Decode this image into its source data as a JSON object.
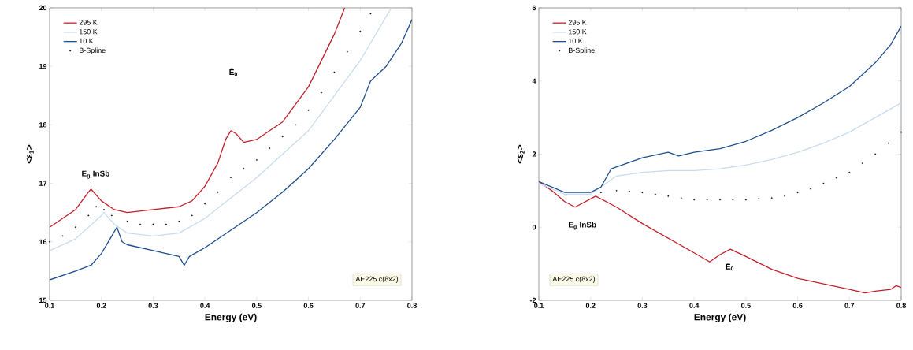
{
  "chart_data": [
    {
      "type": "line",
      "xlabel": "Energy (eV)",
      "ylabel": "<ε$_{1}$>",
      "xlim": [
        0.1,
        0.8
      ],
      "ylim": [
        15,
        20
      ],
      "xticks": [
        0.1,
        0.2,
        0.3,
        0.4,
        0.5,
        0.6,
        0.7,
        0.8
      ],
      "yticks": [
        15,
        16,
        17,
        18,
        19,
        20
      ],
      "legend": "top left",
      "series": [
        {
          "name": "295 K",
          "color": "#c0202a",
          "x": [
            0.1,
            0.125,
            0.15,
            0.175,
            0.18,
            0.2,
            0.225,
            0.25,
            0.3,
            0.35,
            0.375,
            0.4,
            0.425,
            0.44,
            0.45,
            0.46,
            0.475,
            0.5,
            0.525,
            0.55,
            0.575,
            0.6,
            0.625,
            0.65,
            0.67
          ],
          "values": [
            16.25,
            16.4,
            16.55,
            16.85,
            16.9,
            16.7,
            16.55,
            16.5,
            16.55,
            16.6,
            16.7,
            16.95,
            17.35,
            17.75,
            17.9,
            17.85,
            17.7,
            17.75,
            17.9,
            18.05,
            18.35,
            18.65,
            19.1,
            19.55,
            20.0
          ]
        },
        {
          "name": "150 K",
          "color": "#c9dcee",
          "x": [
            0.1,
            0.15,
            0.2,
            0.205,
            0.225,
            0.25,
            0.3,
            0.35,
            0.4,
            0.45,
            0.5,
            0.55,
            0.6,
            0.65,
            0.7,
            0.74,
            0.76
          ],
          "values": [
            15.85,
            16.05,
            16.45,
            16.5,
            16.3,
            16.15,
            16.1,
            16.15,
            16.4,
            16.75,
            17.1,
            17.5,
            17.9,
            18.5,
            19.1,
            19.7,
            20.0
          ]
        },
        {
          "name": "10 K",
          "color": "#1f4e8c",
          "x": [
            0.1,
            0.15,
            0.18,
            0.2,
            0.22,
            0.23,
            0.24,
            0.25,
            0.3,
            0.35,
            0.36,
            0.37,
            0.4,
            0.45,
            0.5,
            0.55,
            0.6,
            0.65,
            0.7,
            0.72,
            0.75,
            0.78,
            0.8
          ],
          "values": [
            15.35,
            15.5,
            15.6,
            15.8,
            16.1,
            16.25,
            16.0,
            15.95,
            15.85,
            15.75,
            15.6,
            15.75,
            15.9,
            16.2,
            16.5,
            16.85,
            17.25,
            17.75,
            18.3,
            18.75,
            19.0,
            19.4,
            19.8
          ]
        },
        {
          "name": "B-Spline",
          "type": "scatter",
          "color": "#000000",
          "x": [
            0.1,
            0.125,
            0.15,
            0.175,
            0.19,
            0.205,
            0.22,
            0.25,
            0.275,
            0.3,
            0.325,
            0.35,
            0.375,
            0.4,
            0.425,
            0.45,
            0.475,
            0.5,
            0.525,
            0.55,
            0.575,
            0.6,
            0.625,
            0.65,
            0.675,
            0.7,
            0.72
          ],
          "values": [
            16.0,
            16.1,
            16.25,
            16.45,
            16.6,
            16.55,
            16.45,
            16.35,
            16.3,
            16.3,
            16.3,
            16.35,
            16.45,
            16.65,
            16.85,
            17.1,
            17.25,
            17.4,
            17.6,
            17.8,
            18.0,
            18.25,
            18.55,
            18.9,
            19.25,
            19.6,
            19.9
          ]
        }
      ],
      "annotations": [
        "E$_{g}$ InSb",
        "Ē$_{0}$",
        "AE225 c(8x2)"
      ]
    },
    {
      "type": "line",
      "xlabel": "Energy (eV)",
      "ylabel": "<ε$_{2}$>",
      "xlim": [
        0.1,
        0.8
      ],
      "ylim": [
        -2,
        6
      ],
      "xticks": [
        0.1,
        0.2,
        0.3,
        0.4,
        0.5,
        0.6,
        0.7,
        0.8
      ],
      "yticks": [
        -2,
        0,
        2,
        4,
        6
      ],
      "legend": "top left",
      "series": [
        {
          "name": "295 K",
          "color": "#c0202a",
          "x": [
            0.1,
            0.125,
            0.15,
            0.17,
            0.19,
            0.21,
            0.25,
            0.3,
            0.35,
            0.4,
            0.43,
            0.45,
            0.47,
            0.5,
            0.55,
            0.6,
            0.65,
            0.7,
            0.73,
            0.75,
            0.78,
            0.79,
            0.8
          ],
          "values": [
            1.25,
            1.0,
            0.7,
            0.55,
            0.7,
            0.85,
            0.55,
            0.1,
            -0.3,
            -0.7,
            -0.95,
            -0.75,
            -0.6,
            -0.8,
            -1.15,
            -1.4,
            -1.55,
            -1.7,
            -1.8,
            -1.75,
            -1.7,
            -1.6,
            -1.65
          ]
        },
        {
          "name": "150 K",
          "color": "#c9dcee",
          "x": [
            0.1,
            0.15,
            0.2,
            0.23,
            0.25,
            0.3,
            0.35,
            0.4,
            0.45,
            0.5,
            0.55,
            0.6,
            0.65,
            0.7,
            0.75,
            0.8
          ],
          "values": [
            1.2,
            0.9,
            0.9,
            1.2,
            1.4,
            1.5,
            1.55,
            1.55,
            1.6,
            1.7,
            1.85,
            2.05,
            2.3,
            2.6,
            3.0,
            3.4
          ]
        },
        {
          "name": "10 K",
          "color": "#1f4e8c",
          "x": [
            0.1,
            0.15,
            0.2,
            0.22,
            0.24,
            0.27,
            0.3,
            0.35,
            0.37,
            0.4,
            0.45,
            0.5,
            0.55,
            0.6,
            0.65,
            0.7,
            0.75,
            0.78,
            0.8
          ],
          "values": [
            1.25,
            0.95,
            0.95,
            1.1,
            1.6,
            1.75,
            1.9,
            2.05,
            1.95,
            2.05,
            2.15,
            2.35,
            2.65,
            3.0,
            3.4,
            3.85,
            4.5,
            5.0,
            5.5
          ]
        },
        {
          "name": "B-Spline",
          "type": "scatter",
          "color": "#000000",
          "x": [
            0.22,
            0.25,
            0.275,
            0.3,
            0.325,
            0.35,
            0.375,
            0.4,
            0.425,
            0.45,
            0.475,
            0.5,
            0.525,
            0.55,
            0.575,
            0.6,
            0.625,
            0.65,
            0.675,
            0.7,
            0.725,
            0.75,
            0.775,
            0.8
          ],
          "values": [
            0.95,
            1.0,
            0.98,
            0.95,
            0.9,
            0.85,
            0.8,
            0.75,
            0.75,
            0.75,
            0.75,
            0.75,
            0.78,
            0.8,
            0.85,
            0.95,
            1.05,
            1.2,
            1.35,
            1.5,
            1.75,
            2.0,
            2.3,
            2.6
          ]
        }
      ],
      "annotations": [
        "E$_{g}$ InSb",
        "Ē$_{0}$",
        "AE225 c(8x2)"
      ]
    }
  ]
}
